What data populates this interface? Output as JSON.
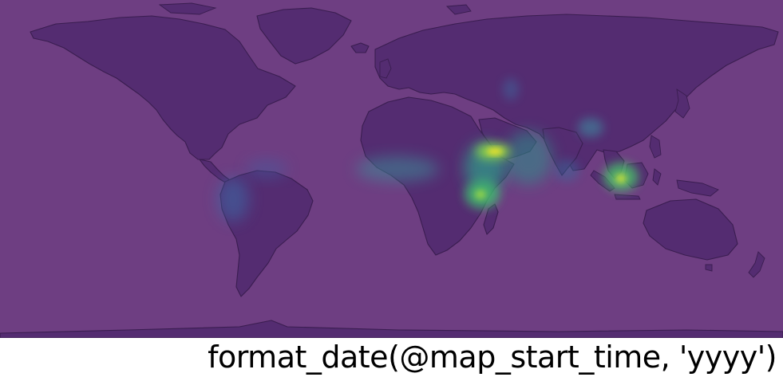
{
  "caption": {
    "text": "format_date(@map_start_time, 'yyyy')"
  },
  "map": {
    "colors": {
      "ocean": "#6e3e82",
      "land": "#542c71",
      "coastline": "#3a1d50"
    },
    "heatmap_colormap": "viridis",
    "hotspots": [
      {
        "name": "red-sea-yemen-hotspot",
        "intensity": 1.0
      },
      {
        "name": "borneo-hotspot",
        "intensity": 0.85
      },
      {
        "name": "east-africa-hotspot",
        "intensity": 0.75
      },
      {
        "name": "horn-of-africa-hotspot",
        "intensity": 0.55
      },
      {
        "name": "arabian-sea-hotspot",
        "intensity": 0.45
      },
      {
        "name": "indochina-hotspot",
        "intensity": 0.35
      },
      {
        "name": "west-africa-hotspot",
        "intensity": 0.3
      },
      {
        "name": "south-america-hotspot",
        "intensity": 0.3
      },
      {
        "name": "arabia-hotspot",
        "intensity": 0.3
      }
    ]
  }
}
